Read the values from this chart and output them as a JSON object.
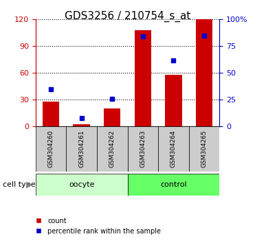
{
  "title": "GDS3256 / 210754_s_at",
  "categories": [
    "GSM304260",
    "GSM304261",
    "GSM304262",
    "GSM304263",
    "GSM304264",
    "GSM304265"
  ],
  "count_values": [
    28,
    2,
    20,
    108,
    58,
    120
  ],
  "percentile_values": [
    35,
    8,
    26,
    84,
    62,
    85
  ],
  "left_ylim": [
    0,
    120
  ],
  "right_ylim": [
    0,
    100
  ],
  "left_yticks": [
    0,
    30,
    60,
    90,
    120
  ],
  "right_yticks": [
    0,
    25,
    50,
    75,
    100
  ],
  "right_yticklabels": [
    "0",
    "25",
    "50",
    "75",
    "100%"
  ],
  "bar_color": "#cc0000",
  "dot_color": "#0000cc",
  "oocyte_color": "#ccffcc",
  "control_color": "#66ff66",
  "xtick_box_color": "#cccccc",
  "oocyte_label": "oocyte",
  "control_label": "control",
  "cell_type_label": "cell type",
  "legend_count": "count",
  "legend_percentile": "percentile rank within the sample",
  "bar_width": 0.55,
  "left_axis_color": "#cc0000",
  "right_axis_color": "#0000cc",
  "title_fontsize": 11,
  "tick_fontsize": 8,
  "label_fontsize": 8
}
